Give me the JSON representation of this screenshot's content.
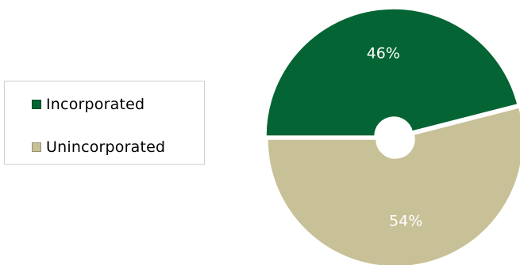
{
  "chart_data": {
    "type": "pie",
    "donut": true,
    "title": "",
    "categories": [
      "Incorporated",
      "Unincorporated"
    ],
    "values": [
      46,
      54
    ],
    "labels": [
      "46%",
      "54%"
    ],
    "colors": [
      "#056433",
      "#c8c097"
    ],
    "legend_position": "left"
  }
}
